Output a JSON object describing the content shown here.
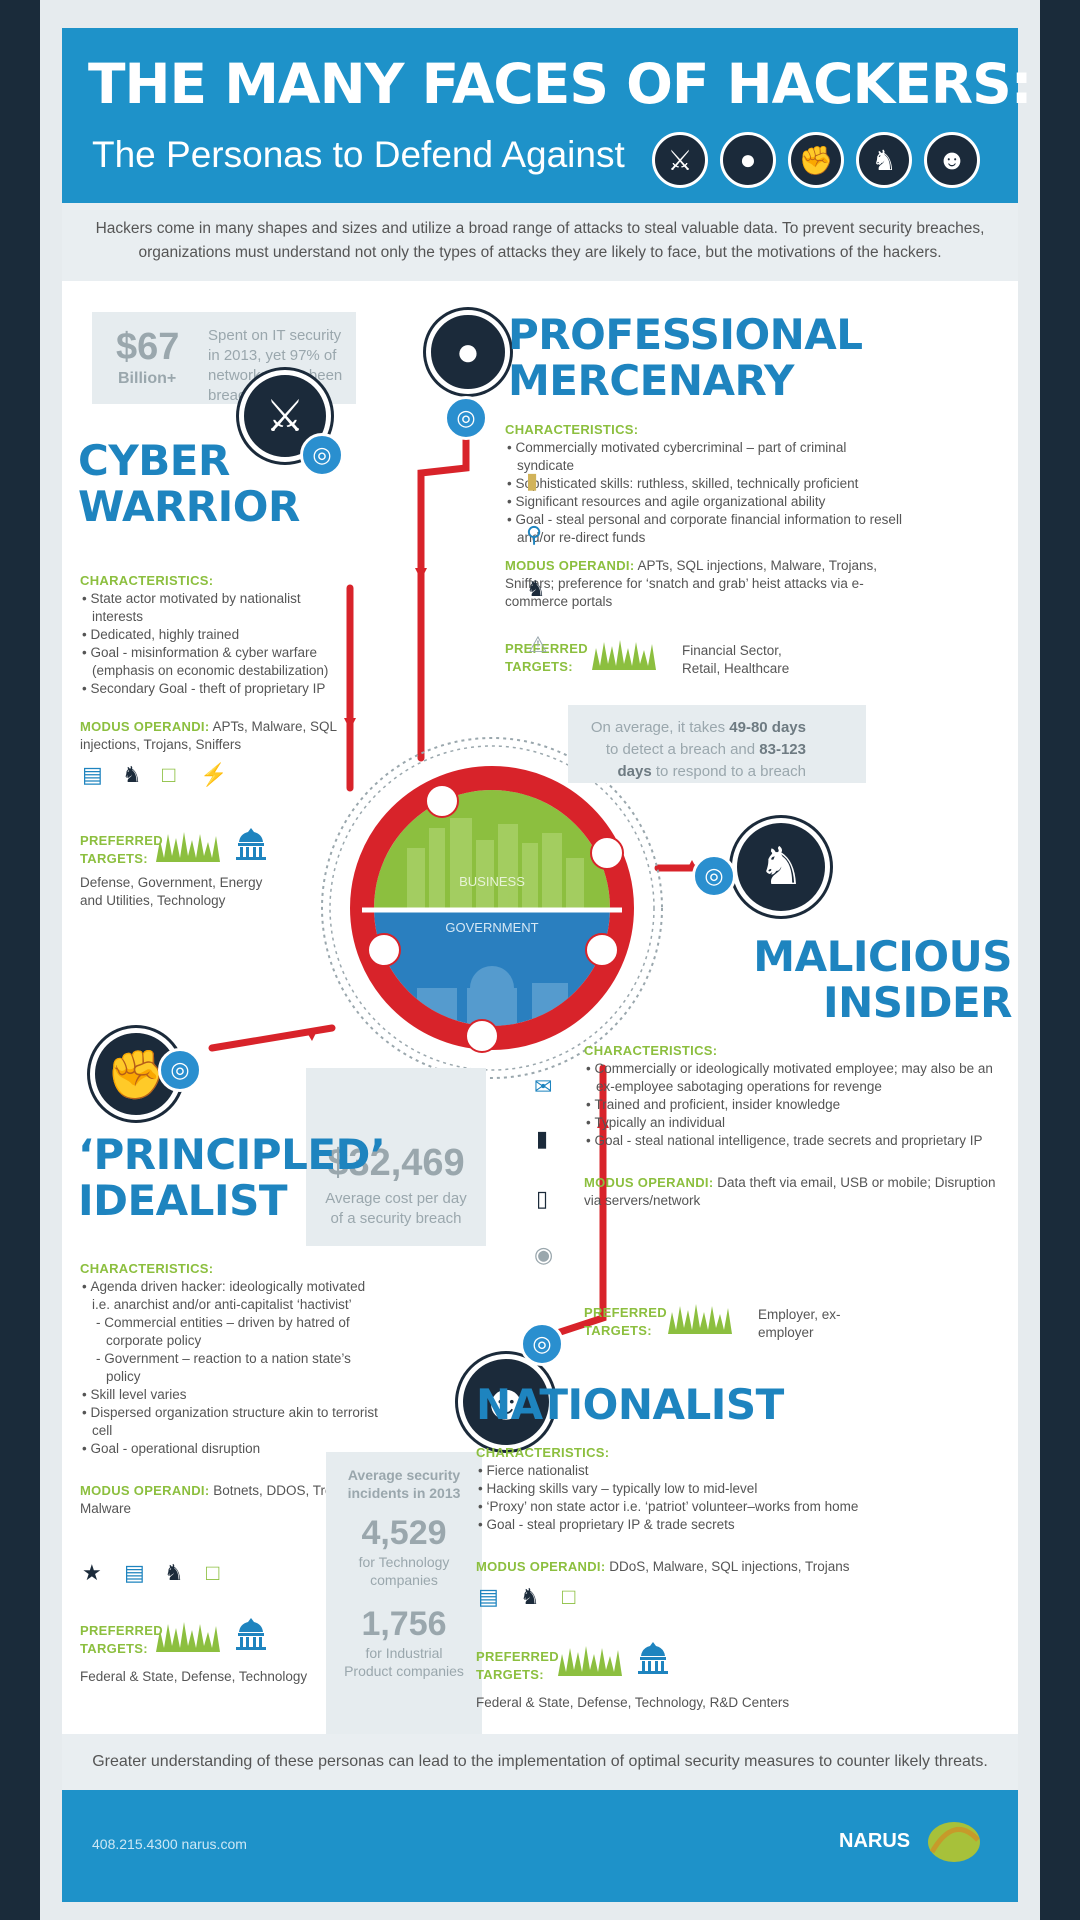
{
  "header": {
    "title": "THE MANY FACES OF HACKERS:",
    "subtitle": "The Personas to Defend Against"
  },
  "intro": "Hackers come in many shapes and sizes and utilize a broad range of attacks to steal valuable data. To prevent security breaches, organizations must understand not only the types of attacks they are likely to face, but the motivations of the hackers.",
  "stat_billion": {
    "number": "$67",
    "unit": "Billion+",
    "text": "Spent on IT security in 2013, yet 97% of networks have been breached"
  },
  "stat_days": {
    "line1_a": "On average, it takes ",
    "line1_b": "49-80 days",
    "line2_a": "to detect a breach and ",
    "line2_b": "83-123",
    "line3_a": "days",
    "line3_b": " to respond to a breach"
  },
  "stat_cost": {
    "number": "$32,469",
    "text": "Average cost per day of a security breach"
  },
  "stat_incidents": {
    "heading": "Average security incidents in 2013",
    "tech_number": "4,529",
    "tech_text": "for Technology companies",
    "ind_number": "1,756",
    "ind_text": "for Industrial Product companies"
  },
  "center": {
    "business": "BUSINESS",
    "government": "GOVERNMENT",
    "badge": "NARUS"
  },
  "labels": {
    "characteristics": "CHARACTERISTICS:",
    "modus": "MODUS OPERANDI:",
    "preferred_1": "PREFERRED",
    "preferred_2": "TARGETS:"
  },
  "cyber_warrior": {
    "title_1": "CYBER",
    "title_2": "WARRIOR",
    "characteristics": [
      "State actor motivated by nationalist interests",
      "Dedicated, highly trained",
      "Goal - misinformation & cyber warfare (emphasis on economic destabilization)",
      "Secondary Goal - theft of proprietary IP"
    ],
    "modus": " APTs, Malware, SQL injections, Trojans, Sniffers",
    "targets": "Defense, Government, Energy and Utilities, Technology"
  },
  "professional_mercenary": {
    "title_1": "PROFESSIONAL",
    "title_2": "MERCENARY",
    "characteristics": [
      "Commercially motivated cybercriminal – part of criminal syndicate",
      "Sophisticated skills: ruthless, skilled, technically proficient",
      "Significant resources and agile organizational ability",
      "Goal - steal personal and corporate financial information to resell and/or re-direct funds"
    ],
    "modus": " APTs, SQL injections, Malware, Trojans, Sniffers; preference for ‘snatch and grab’ heist attacks via e-commerce portals",
    "targets": "Financial Sector, Retail, Healthcare"
  },
  "malicious_insider": {
    "title_1": "MALICIOUS",
    "title_2": "INSIDER",
    "characteristics": [
      "Commercially or ideologically motivated employee; may also be an ex-employee sabotaging operations for revenge",
      "Trained and proficient, insider knowledge",
      "Typically an individual",
      "Goal - steal national intelligence, trade secrets and proprietary IP"
    ],
    "modus": " Data theft via email, USB or mobile; Disruption via servers/network",
    "targets": "Employer, ex-employer"
  },
  "principled_idealist": {
    "title_1": "‘PRINCIPLED’",
    "title_2": "IDEALIST",
    "char_1": "Agenda driven hacker: ideologically motivated i.e. anarchist and/or anti-capitalist ‘hactivist’",
    "sub_1": "Commercial entities – driven by hatred of corporate policy",
    "sub_2": "Government – reaction to a nation state’s policy",
    "char_2": "Skill level varies",
    "char_3": "Dispersed organization structure akin to terrorist cell",
    "char_4": "Goal - operational disruption",
    "modus": " Botnets, DDOS, Trojans, Malware",
    "targets": "Federal & State, Defense, Technology"
  },
  "nationalist": {
    "title": "NATIONALIST",
    "characteristics": [
      "Fierce nationalist",
      "Hacking skills vary – typically low to mid-level",
      "‘Proxy’ non state actor i.e. ‘patriot’ volunteer–works from home",
      "Goal - steal proprietary IP & trade secrets"
    ],
    "modus": " DDoS, Malware, SQL injections, Trojans",
    "targets": "Federal & State, Defense, Technology, R&D Centers"
  },
  "footer": {
    "note": "Greater understanding of these personas can lead to the implementation of optimal security measures to counter likely threats.",
    "contact": "408.215.4300   narus.com",
    "brand": "NARUS"
  },
  "colors": {
    "accent_blue": "#1e92c9",
    "green": "#8cbf3f",
    "red": "#d8232a",
    "navy": "#1b2a3a"
  }
}
